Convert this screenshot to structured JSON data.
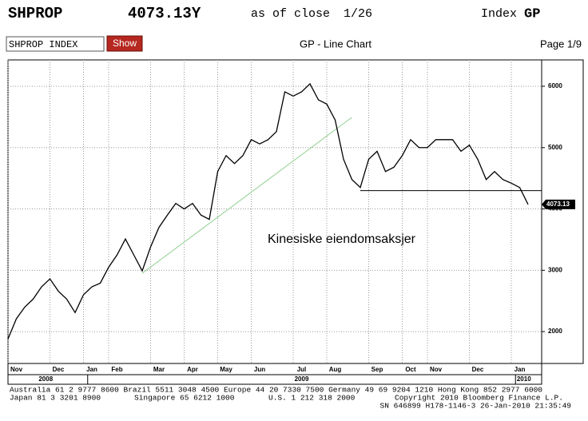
{
  "header": {
    "ticker": "SHPROP",
    "price": "4073.13Y",
    "as_of": "as of close",
    "date": "1/26",
    "kind": "Index",
    "function": "GP"
  },
  "toolbar": {
    "security": "SHPROP INDEX",
    "button": "Show",
    "title": "GP - Line Chart",
    "page": "Page 1/9"
  },
  "chart_data": {
    "type": "line",
    "annotation": "Kinesiske eiendomsaksjer",
    "categories": [
      null,
      "Nov",
      null,
      null,
      null,
      null,
      "Dec",
      null,
      null,
      null,
      "Jan",
      null,
      null,
      "Feb",
      null,
      null,
      null,
      null,
      "Mar",
      null,
      null,
      null,
      "Apr",
      null,
      null,
      null,
      "May",
      null,
      null,
      null,
      "Jun",
      null,
      null,
      null,
      null,
      "Jul",
      null,
      null,
      null,
      "Aug",
      null,
      null,
      null,
      null,
      "Sep",
      null,
      null,
      null,
      "Oct",
      null,
      null,
      "Nov",
      null,
      null,
      null,
      null,
      "Dec",
      null,
      null,
      null,
      null,
      "Jan",
      null
    ],
    "x_groups": [
      {
        "label": "2008",
        "start": 0,
        "end": 9
      },
      {
        "label": "2009",
        "start": 10,
        "end": 60
      },
      {
        "label": "2010",
        "start": 61,
        "end": 62
      }
    ],
    "series": [
      {
        "name": "SHPROP INDEX",
        "color": "#000000",
        "values": [
          1880,
          2210,
          2400,
          2530,
          2730,
          2860,
          2660,
          2530,
          2310,
          2600,
          2730,
          2790,
          3050,
          3250,
          3510,
          3250,
          2990,
          3380,
          3700,
          3900,
          4090,
          4000,
          4090,
          3900,
          3830,
          4610,
          4870,
          4740,
          4870,
          5130,
          5060,
          5130,
          5260,
          5910,
          5840,
          5910,
          6040,
          5780,
          5710,
          5450,
          4810,
          4480,
          4350,
          4810,
          4940,
          4610,
          4680,
          4870,
          5130,
          5000,
          5000,
          5130,
          5130,
          5130,
          4940,
          5040,
          4810,
          4480,
          4610,
          4480,
          4420,
          4350,
          4073.13
        ]
      }
    ],
    "trend_line": {
      "color": "#8fcf8f",
      "start": [
        16,
        2950
      ],
      "end": [
        41,
        5494
      ]
    },
    "support_line": {
      "color": "#000000",
      "start": 42,
      "value": 4299
    },
    "ylim": [
      1480,
      6430
    ],
    "yticks": [
      2000,
      3000,
      4000,
      5000,
      6000
    ],
    "grid": true,
    "axis_side": "right"
  },
  "footer": {
    "line1": "Australia 61 2 9777 8600 Brazil 5511 3048 4500 Europe 44 20 7330 7500 Germany 49 69 9204 1210 Hong Kong 852 2977 6000",
    "line2": [
      "Japan 81 3 3201 8900",
      "Singapore 65 6212 1000",
      "U.S. 1 212 318 2000",
      "Copyright 2010 Bloomberg Finance L.P."
    ],
    "line3": "SN 646899 H178-1146-3 26-Jan-2010 21:35:49"
  }
}
